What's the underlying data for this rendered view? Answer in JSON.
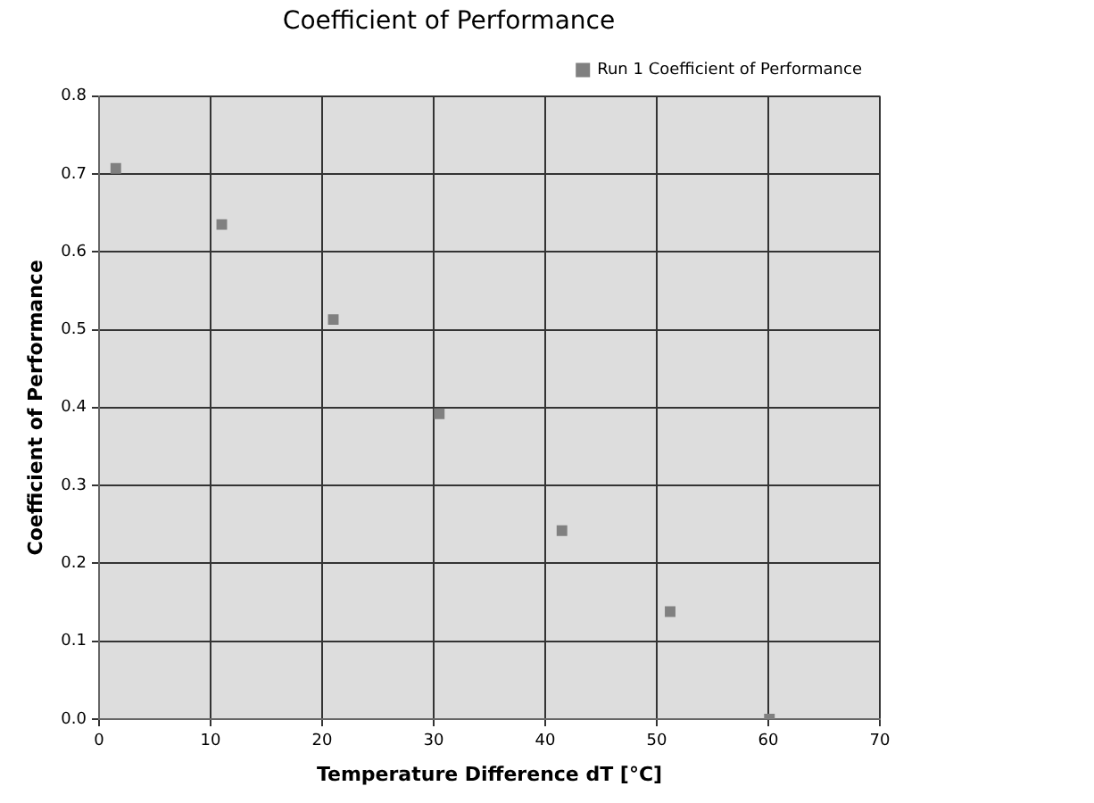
{
  "chart_data": {
    "type": "scatter",
    "title": "Coefficient of Performance",
    "xlabel": "Temperature Difference dT [°C]",
    "ylabel": "Coefficient of Performance",
    "series": [
      {
        "name": "Run 1 Coefficient of Performance",
        "color": "#808080",
        "x": [
          1.5,
          11,
          21,
          30.5,
          41.5,
          51.2,
          60.1
        ],
        "values": [
          0.707,
          0.635,
          0.513,
          0.392,
          0.242,
          0.138,
          0.0
        ]
      }
    ],
    "xlim": [
      0,
      70
    ],
    "xticks": [
      0,
      10,
      20,
      30,
      40,
      50,
      60,
      70
    ],
    "ylim": [
      0,
      0.8
    ],
    "yticks": [
      {
        "value": 0,
        "label": "0.0"
      },
      0.1,
      0.2,
      0.3,
      0.4,
      0.5,
      0.6,
      0.7,
      0.8
    ],
    "grid": true,
    "legend": "top right",
    "marker": "square"
  }
}
